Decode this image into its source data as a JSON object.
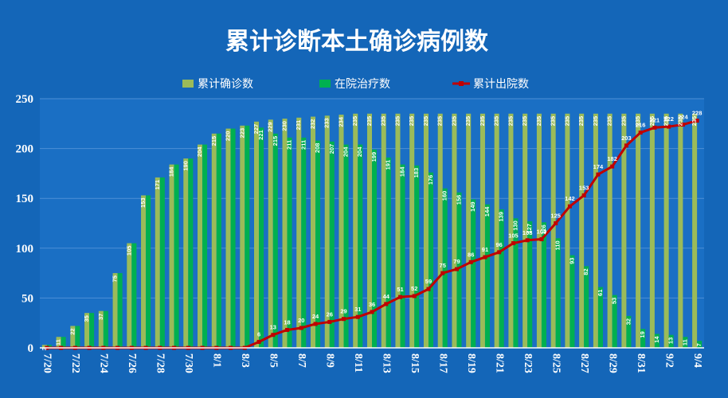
{
  "colors": {
    "background": "#1466b8",
    "plot_area": "#1a6fc4",
    "grid": "#4d8fd6",
    "cumulative_confirmed": "#9bbb59",
    "in_hospital": "#00b050",
    "cumulative_discharged": "#c00000"
  },
  "chart_data": {
    "type": "bar",
    "title": "累计诊断本土确诊病例数",
    "xlabel": "",
    "ylabel": "",
    "ylim": [
      0,
      250
    ],
    "yticks": [
      0,
      50,
      100,
      150,
      200,
      250
    ],
    "grid": true,
    "legend_position": "top",
    "x_tick_labels": [
      "7/20",
      "7/22",
      "7/24",
      "7/26",
      "7/28",
      "7/30",
      "8/1",
      "8/3",
      "8/5",
      "8/7",
      "8/9",
      "8/11",
      "8/13",
      "8/15",
      "8/17",
      "8/19",
      "8/21",
      "8/23",
      "8/25",
      "8/27",
      "8/29",
      "8/31",
      "9/2",
      "9/4"
    ],
    "categories": [
      "7/20",
      "7/21",
      "7/22",
      "7/23",
      "7/24",
      "7/25",
      "7/26",
      "7/27",
      "7/28",
      "7/29",
      "7/30",
      "7/31",
      "8/1",
      "8/2",
      "8/3",
      "8/4",
      "8/5",
      "8/6",
      "8/7",
      "8/8",
      "8/9",
      "8/10",
      "8/11",
      "8/12",
      "8/13",
      "8/14",
      "8/15",
      "8/16",
      "8/17",
      "8/18",
      "8/19",
      "8/20",
      "8/21",
      "8/22",
      "8/23",
      "8/24",
      "8/25",
      "8/26",
      "8/27",
      "8/28",
      "8/29",
      "8/30",
      "8/31",
      "9/1",
      "9/2",
      "9/3",
      "9/4"
    ],
    "series": [
      {
        "name": "累计确诊数",
        "type": "bar",
        "values": [
          3,
          11,
          22,
          35,
          37,
          75,
          105,
          153,
          171,
          184,
          190,
          204,
          215,
          220,
          223,
          227,
          229,
          230,
          231,
          232,
          233,
          234,
          235,
          235,
          235,
          235,
          235,
          235,
          235,
          235,
          235,
          235,
          235,
          235,
          235,
          235,
          235,
          235,
          235,
          235,
          235,
          235,
          235,
          235,
          235,
          235,
          235
        ]
      },
      {
        "name": "在院治疗数",
        "type": "bar",
        "values": [
          3,
          11,
          22,
          35,
          37,
          75,
          105,
          153,
          171,
          184,
          190,
          204,
          215,
          220,
          223,
          221,
          215,
          211,
          211,
          208,
          207,
          204,
          204,
          199,
          191,
          184,
          183,
          176,
          160,
          156,
          149,
          144,
          139,
          130,
          127,
          126,
          110,
          93,
          82,
          61,
          53,
          32,
          19,
          14,
          13,
          11,
          7
        ]
      },
      {
        "name": "累计出院数",
        "type": "line",
        "values": [
          0,
          0,
          0,
          0,
          0,
          0,
          0,
          0,
          0,
          0,
          0,
          0,
          0,
          0,
          0,
          6,
          13,
          18,
          20,
          24,
          26,
          29,
          31,
          36,
          44,
          51,
          52,
          59,
          75,
          79,
          86,
          91,
          96,
          105,
          108,
          109,
          125,
          142,
          153,
          174,
          182,
          203,
          216,
          221,
          222,
          224,
          228
        ]
      }
    ],
    "data_labels": {
      "cumulative_confirmed": [
        "3",
        "11",
        "22",
        "35",
        "37",
        "75",
        "105",
        "153",
        "171",
        "184",
        "190",
        "204",
        "215",
        "220",
        "223",
        "227",
        "229",
        "230",
        "231",
        "232",
        "233",
        "234",
        "235",
        "235",
        "235",
        "235",
        "235",
        "235",
        "235",
        "235",
        "235",
        "235",
        "235",
        "235",
        "235",
        "235",
        "235",
        "235",
        "235",
        "235",
        "235",
        "235",
        "235",
        "235",
        "235",
        "235",
        "235"
      ],
      "in_hospital": [
        "",
        "",
        "",
        "",
        "",
        "",
        "",
        "",
        "",
        "",
        "",
        "",
        "",
        "",
        "",
        "221",
        "215",
        "211",
        "211",
        "208",
        "207",
        "204",
        "204",
        "199",
        "191",
        "184",
        "183",
        "176",
        "160",
        "156",
        "149",
        "144",
        "139",
        "130",
        "127",
        "126",
        "110",
        "93",
        "82",
        "61",
        "53",
        "32",
        "19",
        "14",
        "13",
        "11",
        "7"
      ],
      "cumulative_discharged": [
        "",
        "",
        "",
        "",
        "",
        "",
        "",
        "",
        "",
        "",
        "",
        "",
        "",
        "",
        "",
        "6",
        "13",
        "18",
        "20",
        "24",
        "26",
        "29",
        "31",
        "36",
        "44",
        "51",
        "52",
        "59",
        "75",
        "79",
        "86",
        "91",
        "96",
        "105",
        "108",
        "109",
        "125",
        "142",
        "153",
        "174",
        "182",
        "203",
        "216",
        "221",
        "222",
        "224",
        "228"
      ]
    }
  }
}
